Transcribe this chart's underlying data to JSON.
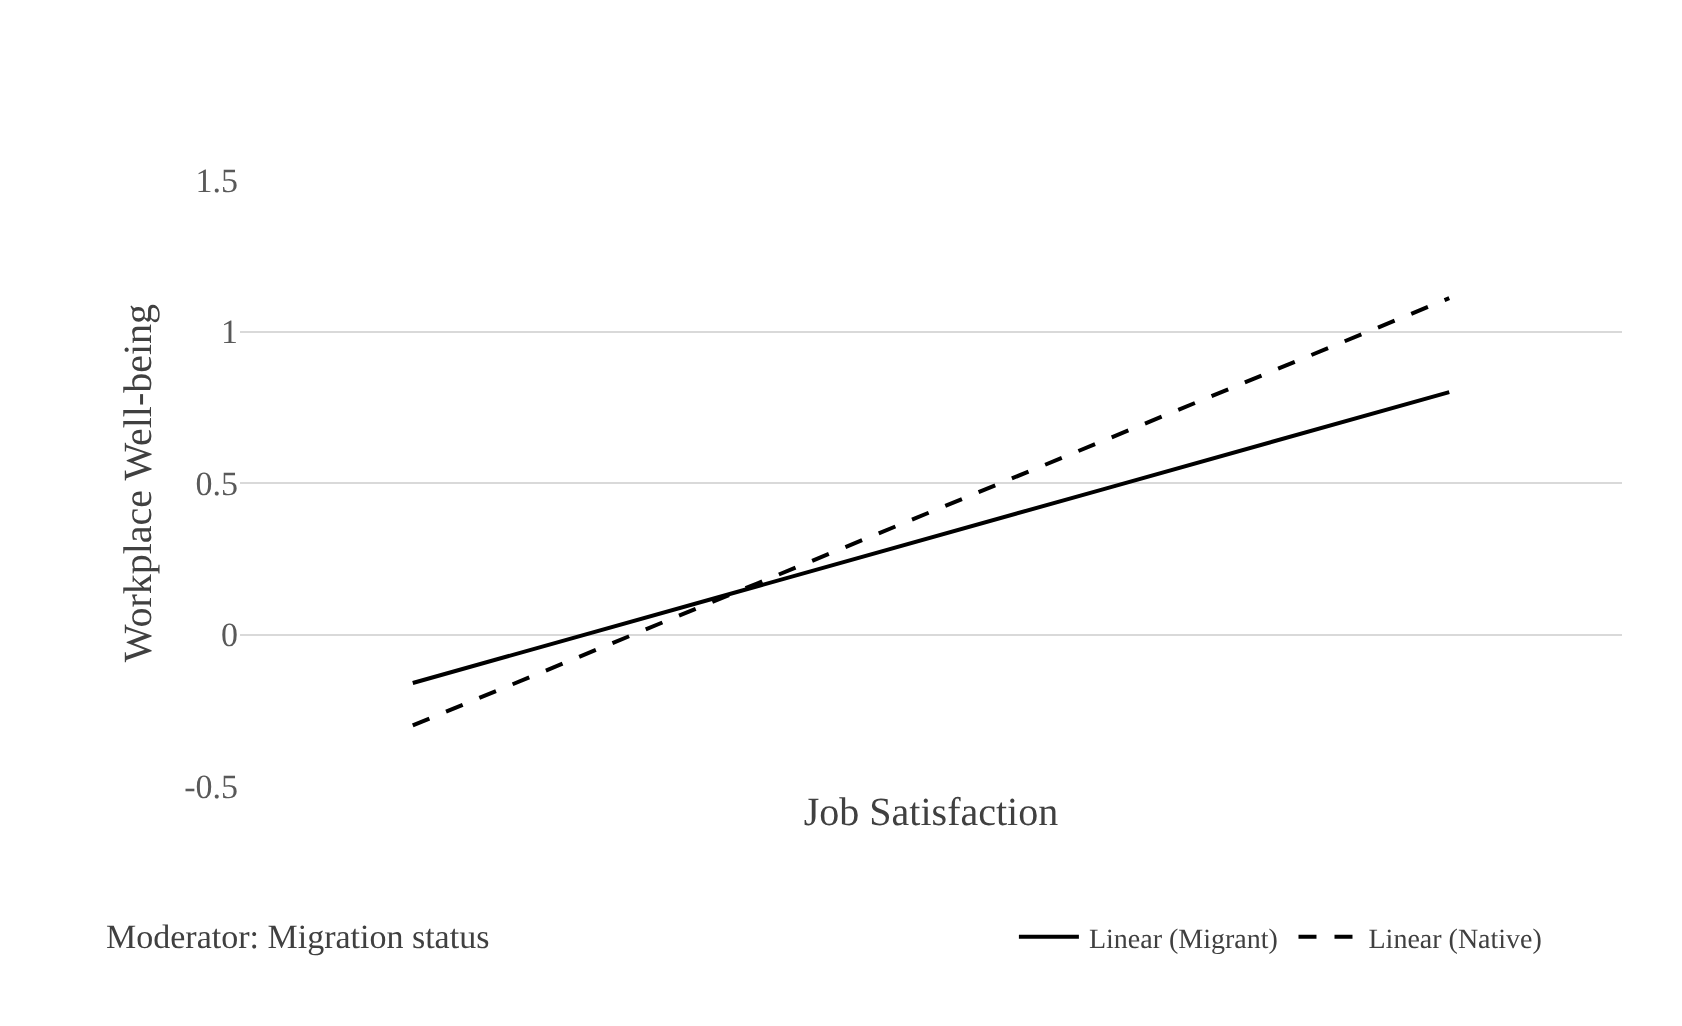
{
  "chart_data": {
    "type": "line",
    "xlabel": "Job Satisfaction",
    "ylabel": "Workplace Well-being",
    "categories": [
      null,
      null,
      null,
      null
    ],
    "series": [
      {
        "name": "Linear (Migrant)",
        "color": "#000000",
        "line_style": "solid",
        "values": [
          -0.16,
          0.16,
          0.48,
          0.8
        ]
      },
      {
        "name": "Linear (Native)",
        "color": "#000000",
        "line_style": "dashed",
        "values": [
          -0.3,
          0.17,
          0.64,
          1.11
        ]
      }
    ],
    "ylim": [
      -0.5,
      1.5
    ],
    "yticks": [
      -0.5,
      0,
      0.5,
      1,
      1.5
    ],
    "grid": "y",
    "tick_labels": "y",
    "legend": "bottom",
    "marker": "none",
    "annotations": [
      "Moderator: Migration status"
    ]
  }
}
